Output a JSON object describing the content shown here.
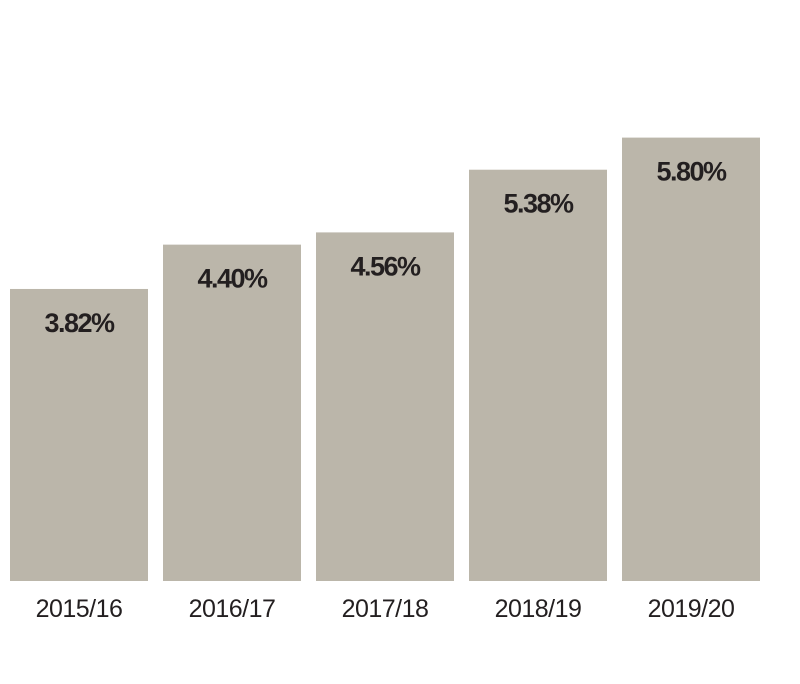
{
  "chart_data": {
    "type": "bar",
    "categories": [
      "2015/16",
      "2016/17",
      "2017/18",
      "2018/19",
      "2019/20"
    ],
    "values": [
      3.82,
      4.4,
      4.56,
      5.38,
      5.8
    ],
    "data_labels": [
      "3.82%",
      "4.40%",
      "4.56%",
      "5.38%",
      "5.80%"
    ],
    "ylim": [
      0,
      7.6
    ],
    "grid": false,
    "bar_color": "#bbb6aa",
    "label_color": "#231f20",
    "axis_text_color": "#231f20"
  }
}
